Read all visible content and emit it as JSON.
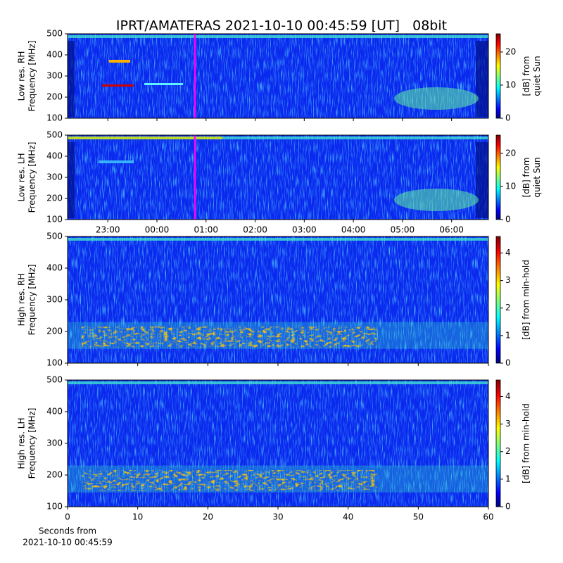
{
  "title": "IPRT/AMATERAS 2021-10-10 00:45:59 [UT]   08bit",
  "chart_data": [
    {
      "type": "heatmap",
      "ylabel": [
        "Low res. RH",
        "Frequency [MHz]"
      ],
      "ylim": [
        100,
        500
      ],
      "yticks": [
        100,
        200,
        300,
        400,
        500
      ],
      "xlim": [
        22.18,
        30.75
      ],
      "colorbar_label": [
        "[dB] from",
        "quiet Sun"
      ],
      "clim": [
        0,
        25.5
      ],
      "cticks": [
        0,
        10,
        20
      ]
    },
    {
      "type": "heatmap",
      "ylabel": [
        "Low res. LH",
        "Frequency [MHz]"
      ],
      "ylim": [
        100,
        500
      ],
      "yticks": [
        100,
        200,
        300,
        400,
        500
      ],
      "xlim": [
        22.18,
        30.75
      ],
      "xticks": [
        {
          "value": 23,
          "label": "23:00"
        },
        {
          "value": 24,
          "label": "00:00"
        },
        {
          "value": 25,
          "label": "01:00"
        },
        {
          "value": 26,
          "label": "02:00"
        },
        {
          "value": 27,
          "label": "03:00"
        },
        {
          "value": 28,
          "label": "04:00"
        },
        {
          "value": 29,
          "label": "05:00"
        },
        {
          "value": 30,
          "label": "06:00"
        }
      ],
      "colorbar_label": [
        "[dB] from",
        "quiet Sun"
      ],
      "clim": [
        0,
        25.5
      ],
      "cticks": [
        0,
        10,
        20
      ]
    },
    {
      "type": "heatmap",
      "ylabel": [
        "High res. RH",
        "Frequency [MHz]"
      ],
      "ylim": [
        100,
        500
      ],
      "yticks": [
        100,
        200,
        300,
        400,
        500
      ],
      "xlim": [
        0,
        60
      ],
      "colorbar_label": [
        "[dB] from min-hold"
      ],
      "clim": [
        0,
        4.6
      ],
      "cticks": [
        0,
        1,
        2,
        3,
        4
      ]
    },
    {
      "type": "heatmap",
      "ylabel": [
        "High res. LH",
        "Frequency [MHz]"
      ],
      "ylim": [
        100,
        500
      ],
      "yticks": [
        100,
        200,
        300,
        400,
        500
      ],
      "xlim": [
        0,
        60
      ],
      "xticks": [
        0,
        10,
        20,
        30,
        40,
        50,
        60
      ],
      "xlabel": [
        "Seconds from",
        "2021-10-10 00:45:59"
      ],
      "colorbar_label": [
        "[dB] from min-hold"
      ],
      "clim": [
        0,
        4.6
      ],
      "cticks": [
        0,
        1,
        2,
        3,
        4
      ]
    }
  ]
}
